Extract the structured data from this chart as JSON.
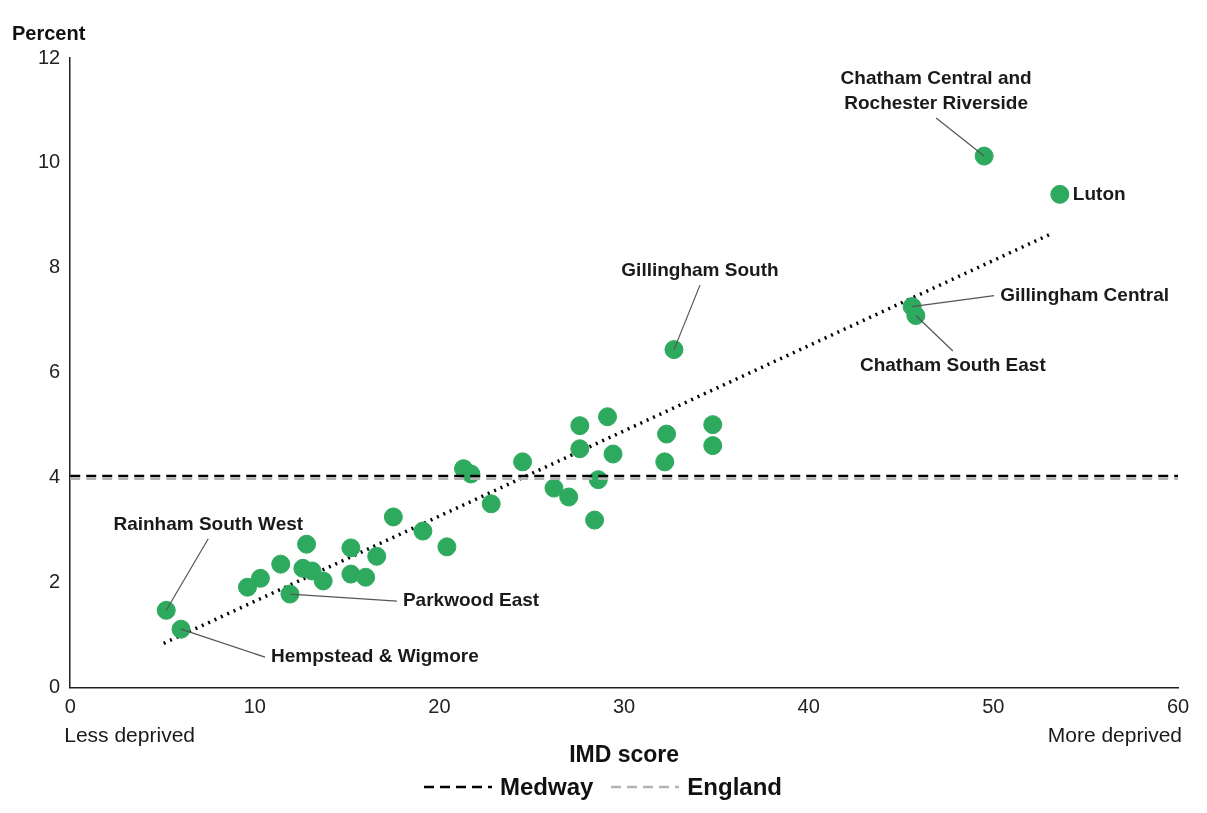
{
  "chart_data": {
    "type": "scatter",
    "xlabel": "IMD score",
    "ylabel": "Percent",
    "xlim": [
      0,
      60
    ],
    "xticks": [
      0,
      10,
      20,
      30,
      40,
      50,
      60
    ],
    "ylim": [
      0,
      12
    ],
    "yticks": [
      0,
      2,
      4,
      6,
      8,
      10,
      12
    ],
    "grid": false,
    "legend": "bottom",
    "marker": "circle",
    "series": [
      {
        "type": "scatter",
        "color": "#2eaa5f",
        "x": [
          5.2,
          6.0,
          9.6,
          10.3,
          11.4,
          11.9,
          12.8,
          12.6,
          13.1,
          13.7,
          15.2,
          15.2,
          16.0,
          16.6,
          17.5,
          19.1,
          20.4,
          21.3,
          21.7,
          22.8,
          24.5,
          26.2,
          27.0,
          27.6,
          27.6,
          28.4,
          28.6,
          29.1,
          29.4,
          32.2,
          32.3,
          32.7,
          34.8,
          34.8,
          45.6,
          45.8,
          49.5,
          53.6
        ],
        "values": [
          1.47,
          1.11,
          1.91,
          2.08,
          2.35,
          1.78,
          2.73,
          2.27,
          2.22,
          2.03,
          2.66,
          2.16,
          2.1,
          2.5,
          3.25,
          2.98,
          2.68,
          4.17,
          4.07,
          3.5,
          4.3,
          3.8,
          3.63,
          4.99,
          4.55,
          3.19,
          3.96,
          5.16,
          4.45,
          4.3,
          4.83,
          6.44,
          5.01,
          4.61,
          7.26,
          7.09,
          10.13,
          9.4
        ]
      },
      {
        "type": "line",
        "color": "#000000",
        "line_style": "dotted",
        "marker": "none",
        "x": [
          5.06,
          53.2
        ],
        "values": [
          0.84,
          8.66
        ]
      }
    ],
    "ref_lines": [
      {
        "axis": "y",
        "value": 4.03,
        "label": "Medway",
        "color": "#000000",
        "line_style": "dashed"
      },
      {
        "axis": "y",
        "value": 3.98,
        "label": "England",
        "color": "#b3b3b3",
        "line_style": "dashed"
      }
    ],
    "annotations": [
      {
        "text": "Rainham South West",
        "x": 5.2,
        "y": 1.47
      },
      {
        "text": "Hempstead & Wigmore",
        "x": 6.0,
        "y": 1.11
      },
      {
        "text": "Parkwood East",
        "x": 11.9,
        "y": 1.78
      },
      {
        "text": "Gillingham South",
        "x": 32.7,
        "y": 6.44
      },
      {
        "text": "Gillingham Central",
        "x": 45.6,
        "y": 7.26
      },
      {
        "text": "Chatham South East",
        "x": 45.8,
        "y": 7.09
      },
      {
        "text": "Chatham Central and Rochester Riverside",
        "x": 49.5,
        "y": 10.13
      },
      {
        "text": "Luton",
        "x": 53.6,
        "y": 9.4
      },
      "Less deprived",
      "More deprived"
    ]
  }
}
